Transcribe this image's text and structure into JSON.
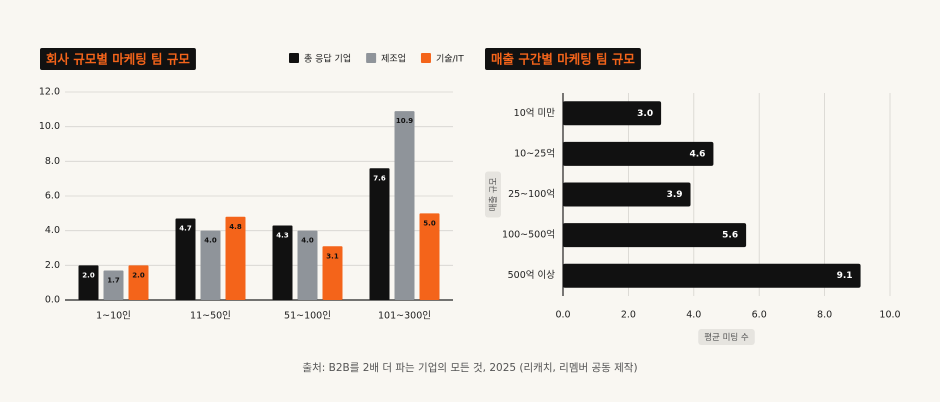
{
  "chart_data": [
    {
      "type": "bar",
      "title": "회사 규모별 마케팅 팀 규모",
      "categories": [
        "1~10인",
        "11~50인",
        "51~100인",
        "101~300인"
      ],
      "series": [
        {
          "name": "총 응답 기업",
          "color": "#111111",
          "values": [
            2.0,
            4.7,
            4.3,
            7.6
          ],
          "value_labels": [
            "2.0",
            "4.7",
            "4.3",
            "7.6"
          ]
        },
        {
          "name": "제조업",
          "color": "#8f949a",
          "values": [
            1.7,
            4.0,
            4.0,
            10.9
          ],
          "value_labels": [
            "1.7",
            "4.0",
            "4.0",
            "10.9"
          ]
        },
        {
          "name": "기술/IT",
          "color": "#f4641a",
          "values": [
            2.0,
            4.8,
            3.1,
            5.0
          ],
          "value_labels": [
            "2.0",
            "4.8",
            "3.1",
            "5.0"
          ]
        }
      ],
      "ylim": [
        0,
        12
      ],
      "yticks": [
        {
          "value": 0,
          "label": "0.0"
        },
        {
          "value": 2,
          "label": "2.0"
        },
        {
          "value": 4,
          "label": "4.0"
        },
        {
          "value": 6,
          "label": "6.0"
        },
        {
          "value": 8,
          "label": "8.0"
        },
        {
          "value": 10,
          "label": "10.0"
        },
        {
          "value": 12,
          "label": "12.0"
        }
      ],
      "grid": true,
      "legend": "top-right"
    },
    {
      "type": "hbar",
      "title": "매출 구간별 마케팅 팀 규모",
      "categories": [
        "10억 미만",
        "10~25억",
        "25~100억",
        "100~500억",
        "500억 이상"
      ],
      "values": [
        3.0,
        4.6,
        3.9,
        5.6,
        9.1
      ],
      "value_labels": [
        "3.0",
        "4.6",
        "3.9",
        "5.6",
        "9.1"
      ],
      "color": "#111111",
      "xlim": [
        0,
        10
      ],
      "xticks": [
        {
          "value": 0,
          "label": "0.0"
        },
        {
          "value": 2,
          "label": "2.0"
        },
        {
          "value": 4,
          "label": "4.0"
        },
        {
          "value": 6,
          "label": "6.0"
        },
        {
          "value": 8,
          "label": "8.0"
        },
        {
          "value": 10,
          "label": "10.0"
        }
      ],
      "x_label": "평균 미팅 수",
      "y_label": "매출 규모",
      "grid": true
    }
  ],
  "caption": "출처: B2B를 2배 더 파는 기업의 모든 것, 2025 (리캐치, 리멤버 공동 제작)"
}
